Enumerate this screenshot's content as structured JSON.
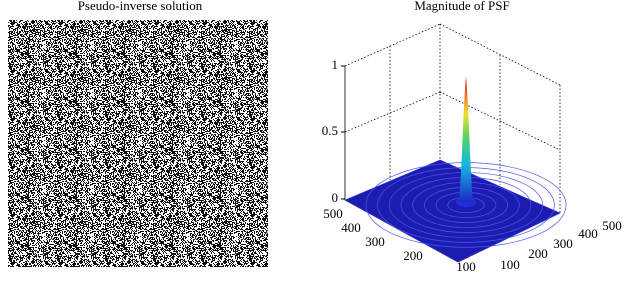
{
  "left_panel": {
    "title": "Pseudo-inverse solution"
  },
  "right_panel": {
    "title": "Magnitude of PSF",
    "z_ticks": [
      "0",
      "0.5",
      "1"
    ],
    "left_axis_ticks": [
      "500",
      "400",
      "300",
      "200",
      "100"
    ],
    "right_axis_ticks": [
      "100",
      "200",
      "300",
      "400",
      "500"
    ]
  }
}
